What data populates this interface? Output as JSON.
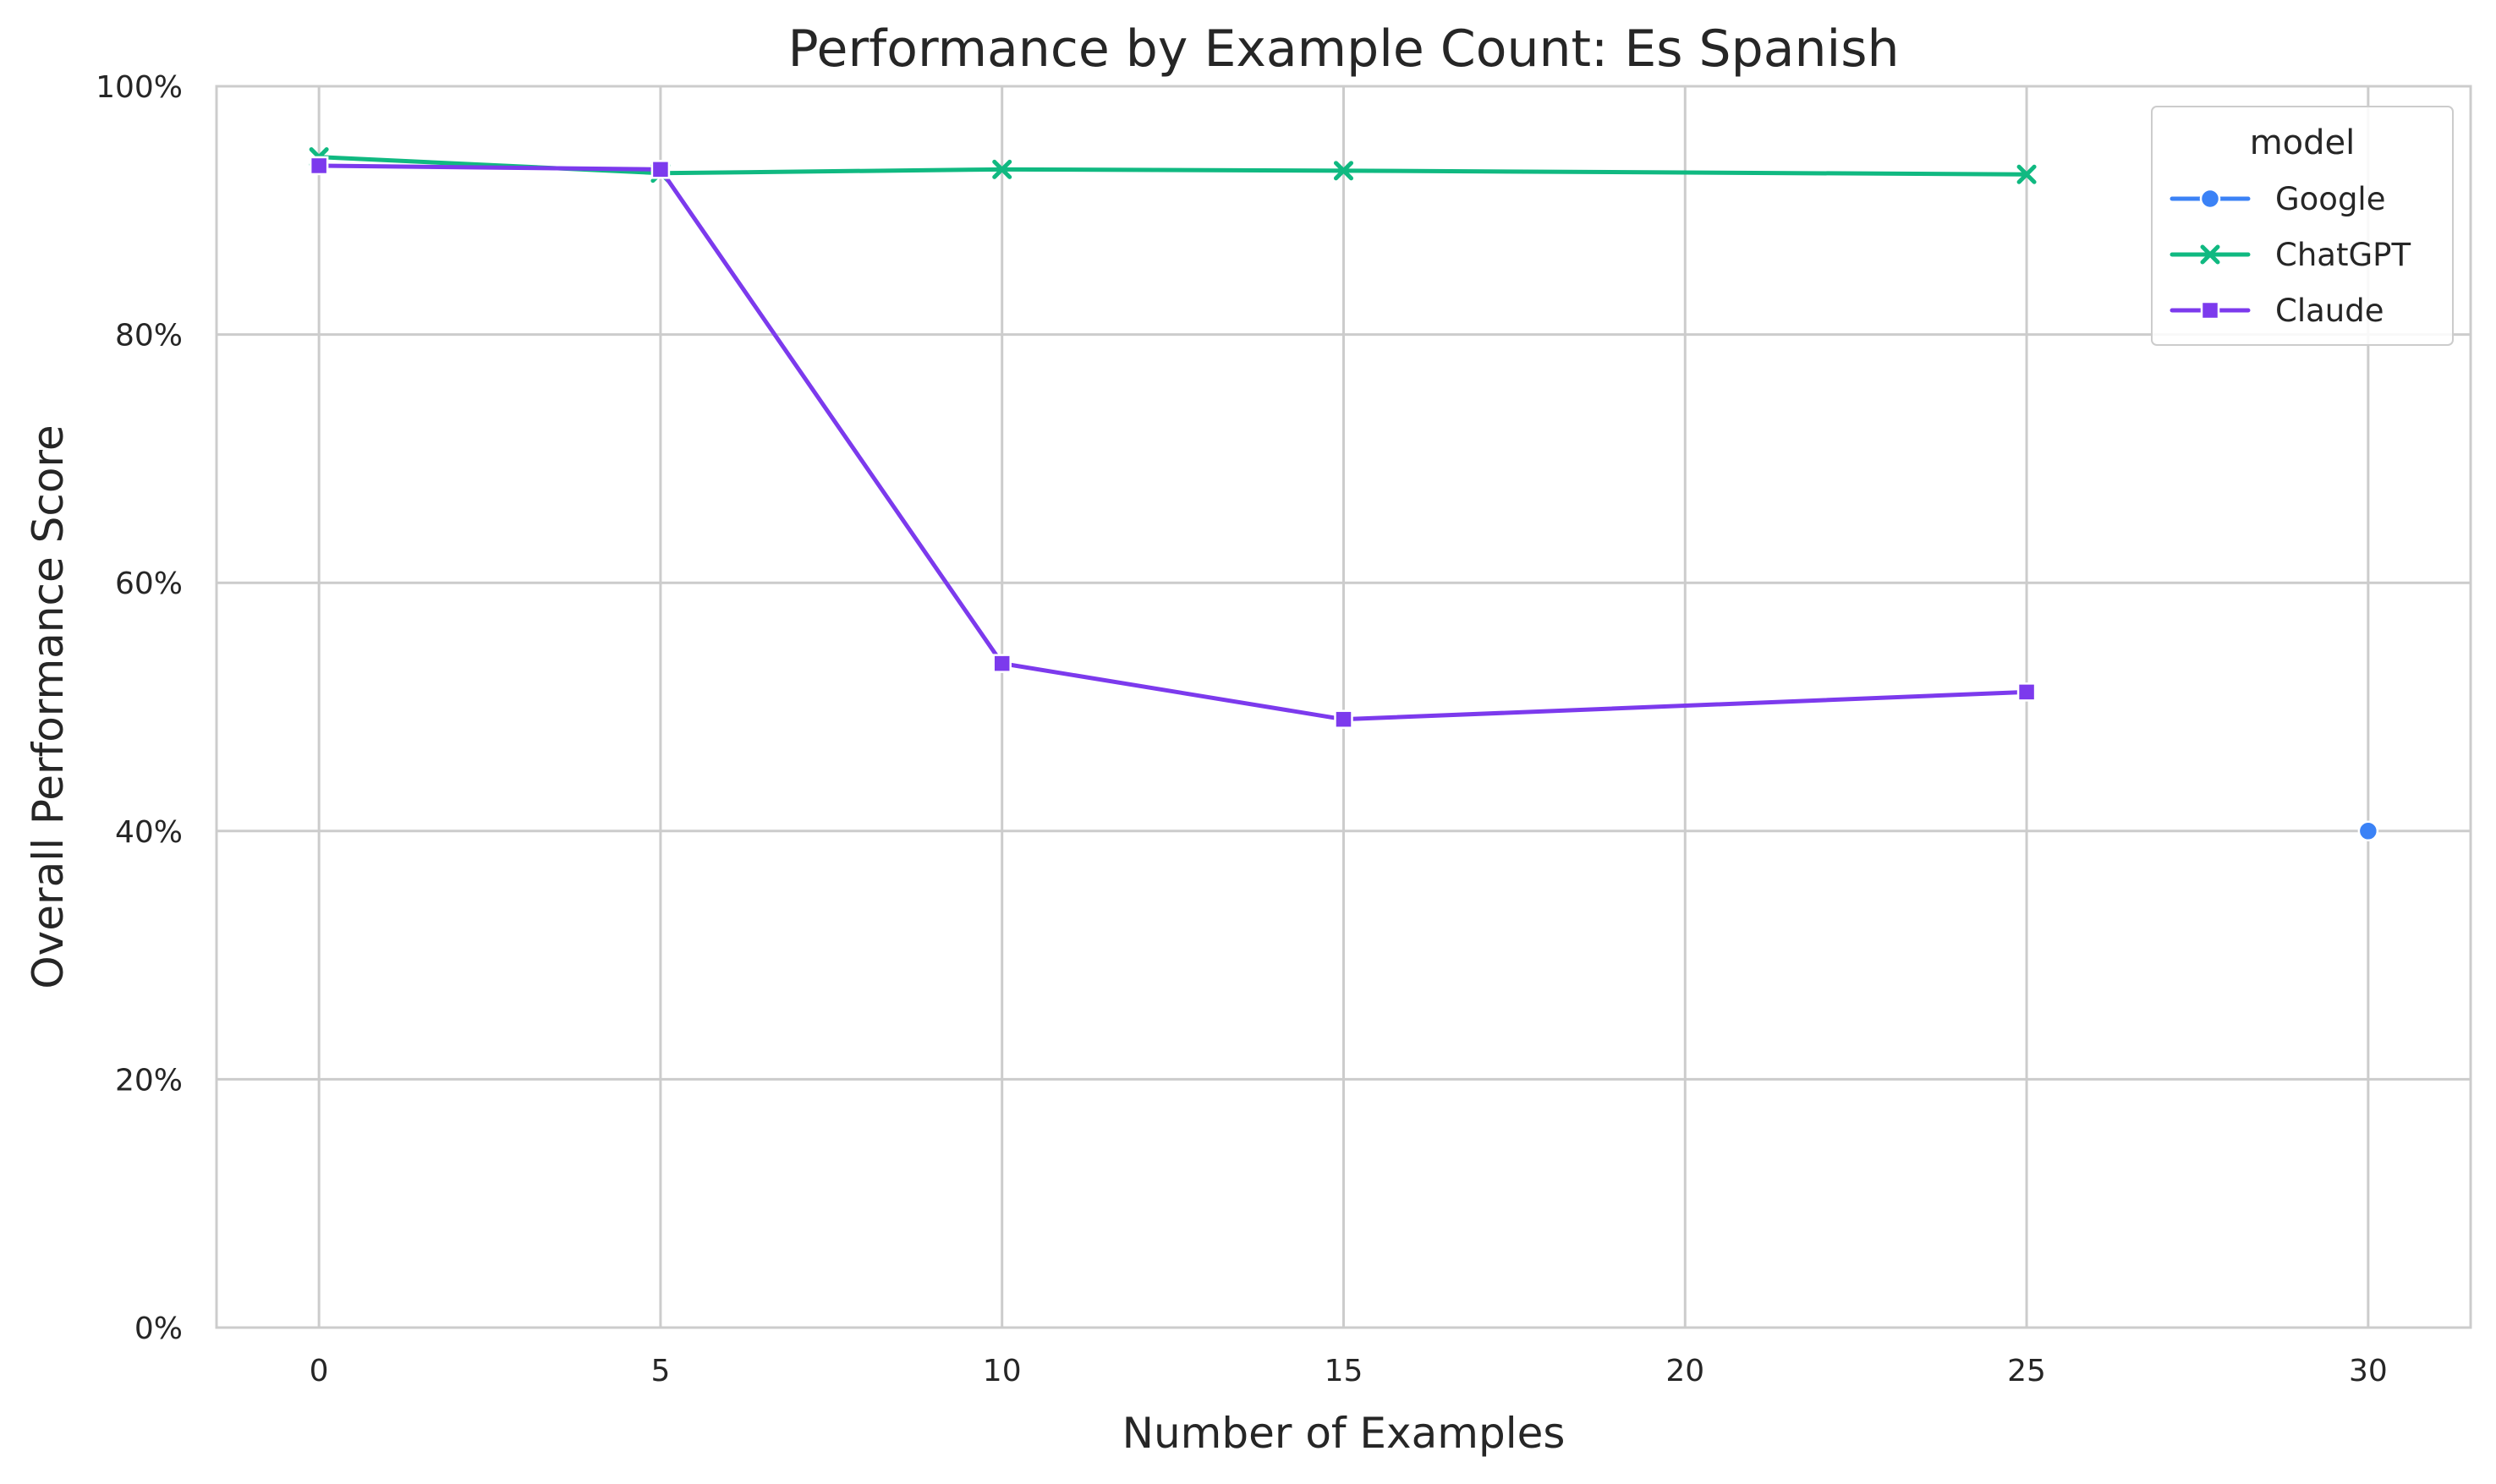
{
  "chart_data": {
    "type": "line",
    "title": "Performance by Example Count: Es Spanish",
    "xlabel": "Number of Examples",
    "ylabel": "Overall Performance Score",
    "xlim": [
      -1.5,
      31.5
    ],
    "ylim": [
      0,
      1
    ],
    "x_ticks": [
      0,
      5,
      10,
      15,
      20,
      25,
      30
    ],
    "y_ticks": [
      0,
      0.2,
      0.4,
      0.6,
      0.8,
      1.0
    ],
    "y_tick_labels": [
      "0%",
      "20%",
      "40%",
      "60%",
      "80%",
      "100%"
    ],
    "grid": true,
    "legend": {
      "title": "model",
      "placement": "top-right"
    },
    "series": [
      {
        "name": "Google",
        "color": "#3b82f6",
        "marker": "circle",
        "x": [
          30
        ],
        "y": [
          0.4
        ]
      },
      {
        "name": "ChatGPT",
        "color": "#10b981",
        "marker": "x",
        "x": [
          0,
          5,
          10,
          15,
          25
        ],
        "y": [
          0.943,
          0.93,
          0.933,
          0.932,
          0.929
        ]
      },
      {
        "name": "Claude",
        "color": "#7c3aed",
        "marker": "square",
        "x": [
          0,
          5,
          10,
          15,
          25
        ],
        "y": [
          0.936,
          0.933,
          0.535,
          0.49,
          0.512
        ]
      }
    ]
  }
}
